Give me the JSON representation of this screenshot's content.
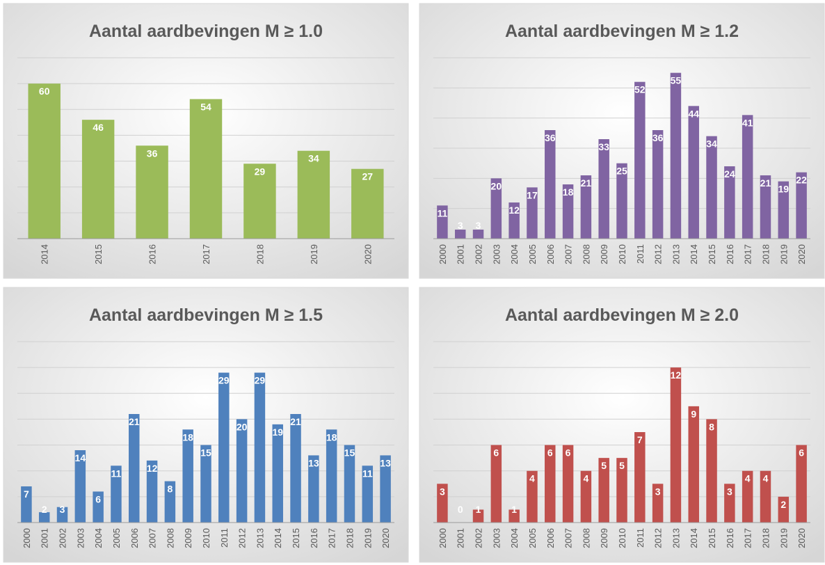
{
  "chart_data": [
    {
      "type": "bar",
      "title": "Aantal aardbevingen M ≥ 1.0",
      "categories": [
        "2014",
        "2015",
        "2016",
        "2017",
        "2018",
        "2019",
        "2020"
      ],
      "values": [
        60,
        46,
        36,
        54,
        29,
        34,
        27
      ],
      "color": "#9bbb59",
      "ylim": [
        0,
        70
      ],
      "yticks": [
        0,
        10,
        20,
        30,
        40,
        50,
        60,
        70
      ],
      "grid": true
    },
    {
      "type": "bar",
      "title": "Aantal aardbevingen M ≥ 1.2",
      "categories": [
        "2000",
        "2001",
        "2002",
        "2003",
        "2004",
        "2005",
        "2006",
        "2007",
        "2008",
        "2009",
        "2010",
        "2011",
        "2012",
        "2013",
        "2014",
        "2015",
        "2016",
        "2017",
        "2018",
        "2019",
        "2020"
      ],
      "values": [
        11,
        3,
        3,
        20,
        12,
        17,
        36,
        18,
        21,
        33,
        25,
        52,
        36,
        55,
        44,
        34,
        24,
        41,
        21,
        19,
        22
      ],
      "color": "#8064a2",
      "ylim": [
        0,
        60
      ],
      "yticks": [
        0,
        10,
        20,
        30,
        40,
        50,
        60
      ],
      "grid": true
    },
    {
      "type": "bar",
      "title": "Aantal aardbevingen M ≥ 1.5",
      "categories": [
        "2000",
        "2001",
        "2002",
        "2003",
        "2004",
        "2005",
        "2006",
        "2007",
        "2008",
        "2009",
        "2010",
        "2011",
        "2012",
        "2013",
        "2014",
        "2015",
        "2016",
        "2017",
        "2018",
        "2019",
        "2020"
      ],
      "values": [
        7,
        2,
        3,
        14,
        6,
        11,
        21,
        12,
        8,
        18,
        15,
        29,
        20,
        29,
        19,
        21,
        13,
        18,
        15,
        11,
        13
      ],
      "color": "#4f81bd",
      "ylim": [
        0,
        35
      ],
      "yticks": [
        0,
        5,
        10,
        15,
        20,
        25,
        30,
        35
      ],
      "grid": true
    },
    {
      "type": "bar",
      "title": "Aantal aardbevingen M ≥ 2.0",
      "categories": [
        "2000",
        "2001",
        "2002",
        "2003",
        "2004",
        "2005",
        "2006",
        "2007",
        "2008",
        "2009",
        "2010",
        "2011",
        "2012",
        "2013",
        "2014",
        "2015",
        "2016",
        "2017",
        "2018",
        "2019",
        "2020"
      ],
      "values": [
        3,
        0,
        1,
        6,
        1,
        4,
        6,
        6,
        4,
        5,
        5,
        7,
        3,
        12,
        9,
        8,
        3,
        4,
        4,
        2,
        6
      ],
      "color": "#c0504d",
      "ylim": [
        0,
        14
      ],
      "yticks": [
        0,
        2,
        4,
        6,
        8,
        10,
        12,
        14
      ],
      "grid": true
    }
  ]
}
